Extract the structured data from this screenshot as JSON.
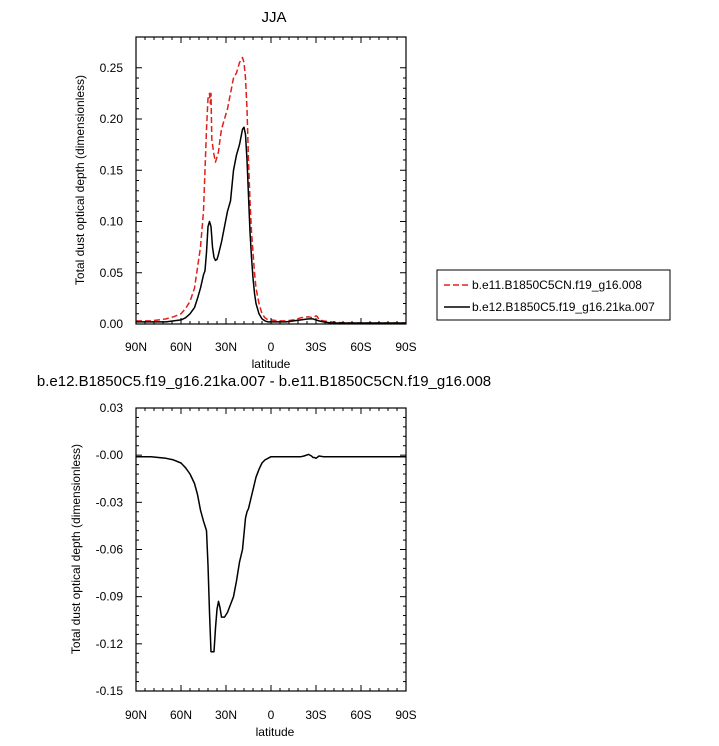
{
  "chart_data": [
    {
      "type": "line",
      "title": "JJA",
      "xlabel": "latitude",
      "ylabel": "Total dust optical depth (dimensionless)",
      "xlim": [
        90,
        -90
      ],
      "ylim": [
        0,
        0.28
      ],
      "xticks": [
        90,
        60,
        30,
        0,
        -30,
        -60,
        -90
      ],
      "xtick_labels": [
        "90N",
        "60N",
        "30N",
        "0",
        "30S",
        "60S",
        "90S"
      ],
      "yticks": [
        0,
        0.05,
        0.1,
        0.15,
        0.2,
        0.25
      ],
      "ytick_labels": [
        "0.00",
        "0.05",
        "0.10",
        "0.15",
        "0.20",
        "0.25"
      ],
      "legend_position": "right",
      "series": [
        {
          "name": "b.e11.B1850C5CN.f19_g16.008",
          "color": "#e0201c",
          "dash": "dashed",
          "x": [
            90,
            80,
            70,
            65,
            60,
            57,
            54,
            51,
            49,
            47,
            45,
            44,
            43,
            42,
            41,
            40.5,
            40,
            39.5,
            38,
            37,
            35,
            34,
            33,
            31,
            29,
            27,
            25,
            23,
            21,
            19,
            18,
            17,
            16,
            15,
            14,
            13,
            12,
            11,
            10,
            8,
            6,
            4,
            2,
            0,
            -5,
            -10,
            -15,
            -20,
            -25,
            -28,
            -30,
            -31,
            -32,
            -35,
            -40,
            -50,
            -60,
            -70,
            -80,
            -90
          ],
          "y": [
            0.003,
            0.003,
            0.005,
            0.007,
            0.01,
            0.015,
            0.022,
            0.035,
            0.055,
            0.075,
            0.11,
            0.15,
            0.19,
            0.22,
            0.225,
            0.215,
            0.225,
            0.18,
            0.165,
            0.158,
            0.168,
            0.18,
            0.19,
            0.2,
            0.21,
            0.225,
            0.24,
            0.245,
            0.255,
            0.26,
            0.255,
            0.24,
            0.21,
            0.16,
            0.12,
            0.09,
            0.07,
            0.05,
            0.035,
            0.02,
            0.01,
            0.006,
            0.004,
            0.004,
            0.003,
            0.003,
            0.004,
            0.006,
            0.007,
            0.006,
            0.008,
            0.007,
            0.004,
            0.003,
            0.002,
            0.001,
            0.001,
            0.001,
            0.001,
            0.001
          ]
        },
        {
          "name": "b.e12.B1850C5.f19_g16.21ka.007",
          "color": "#000000",
          "dash": "solid",
          "x": [
            90,
            80,
            70,
            65,
            60,
            57,
            54,
            51,
            49,
            47,
            45,
            44,
            43,
            42,
            41,
            40,
            39,
            38,
            37,
            36,
            35,
            33,
            31,
            29,
            27,
            25,
            23,
            21,
            19,
            18,
            17,
            16,
            15,
            14,
            13,
            12,
            11,
            10,
            8,
            6,
            4,
            2,
            0,
            -5,
            -10,
            -15,
            -20,
            -25,
            -28,
            -30,
            -32,
            -35,
            -40,
            -50,
            -60,
            -70,
            -80,
            -90
          ],
          "y": [
            0.002,
            0.002,
            0.002,
            0.003,
            0.004,
            0.006,
            0.01,
            0.016,
            0.025,
            0.035,
            0.048,
            0.052,
            0.07,
            0.095,
            0.1,
            0.095,
            0.075,
            0.065,
            0.062,
            0.063,
            0.068,
            0.08,
            0.095,
            0.11,
            0.12,
            0.15,
            0.165,
            0.175,
            0.19,
            0.192,
            0.185,
            0.16,
            0.125,
            0.09,
            0.065,
            0.045,
            0.03,
            0.02,
            0.01,
            0.005,
            0.003,
            0.002,
            0.002,
            0.002,
            0.002,
            0.003,
            0.004,
            0.005,
            0.005,
            0.004,
            0.003,
            0.002,
            0.001,
            0.001,
            0.001,
            0.001,
            0.001,
            0.001
          ]
        }
      ]
    },
    {
      "type": "line",
      "title": "b.e12.B1850C5.f19_g16.21ka.007 - b.e11.B1850C5CN.f19_g16.008",
      "xlabel": "latitude",
      "ylabel": "Total dust optical depth (dimensionless)",
      "xlim": [
        90,
        -90
      ],
      "ylim": [
        -0.15,
        0.03
      ],
      "xticks": [
        90,
        60,
        30,
        0,
        -30,
        -60,
        -90
      ],
      "xtick_labels": [
        "90N",
        "60N",
        "30N",
        "0",
        "30S",
        "60S",
        "90S"
      ],
      "yticks": [
        0.03,
        0,
        -0.03,
        -0.06,
        -0.09,
        -0.12,
        -0.15
      ],
      "ytick_labels": [
        "0.03",
        "-0.00",
        "-0.03",
        "-0.06",
        "-0.09",
        "-0.12",
        "-0.15"
      ],
      "series": [
        {
          "color": "#000000",
          "dash": "solid",
          "x": [
            90,
            80,
            70,
            65,
            60,
            57,
            54,
            51,
            49,
            47,
            45,
            44,
            43,
            42,
            41,
            40,
            39.5,
            38,
            37,
            36,
            35,
            34,
            33,
            31,
            29,
            27,
            25,
            23,
            21,
            19,
            18,
            17,
            16,
            15,
            14,
            13,
            12,
            11,
            10,
            8,
            6,
            4,
            2,
            0,
            -5,
            -10,
            -15,
            -20,
            -22,
            -25,
            -27,
            -28,
            -29,
            -30,
            -32,
            -35,
            -40,
            -50,
            -60,
            -70,
            -80,
            -90
          ],
          "y": [
            -0.001,
            -0.001,
            -0.002,
            -0.003,
            -0.005,
            -0.008,
            -0.012,
            -0.018,
            -0.025,
            -0.035,
            -0.042,
            -0.045,
            -0.048,
            -0.07,
            -0.1,
            -0.125,
            -0.125,
            -0.125,
            -0.11,
            -0.098,
            -0.093,
            -0.097,
            -0.103,
            -0.103,
            -0.1,
            -0.095,
            -0.09,
            -0.08,
            -0.068,
            -0.06,
            -0.05,
            -0.04,
            -0.036,
            -0.034,
            -0.03,
            -0.026,
            -0.022,
            -0.018,
            -0.014,
            -0.009,
            -0.005,
            -0.003,
            -0.002,
            -0.001,
            -0.001,
            -0.001,
            -0.001,
            -0.001,
            -0.0005,
            0.0005,
            -0.0005,
            -0.0015,
            -0.0015,
            -0.002,
            -0.0005,
            -0.001,
            -0.001,
            -0.001,
            -0.001,
            -0.001,
            -0.001,
            -0.001
          ]
        }
      ]
    }
  ]
}
